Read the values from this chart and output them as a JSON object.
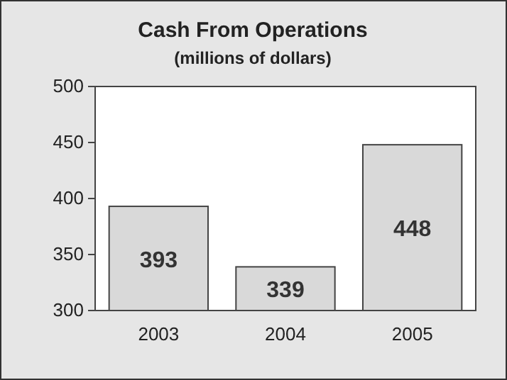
{
  "chart_data": {
    "type": "bar",
    "title": "Cash From Operations",
    "subtitle": "(millions of dollars)",
    "categories": [
      "2003",
      "2004",
      "2005"
    ],
    "values": [
      393,
      339,
      448
    ],
    "color": "#d9d9d9",
    "ylim": [
      300,
      500
    ],
    "yticks": [
      300,
      350,
      400,
      450,
      500
    ],
    "data_labels": true
  }
}
